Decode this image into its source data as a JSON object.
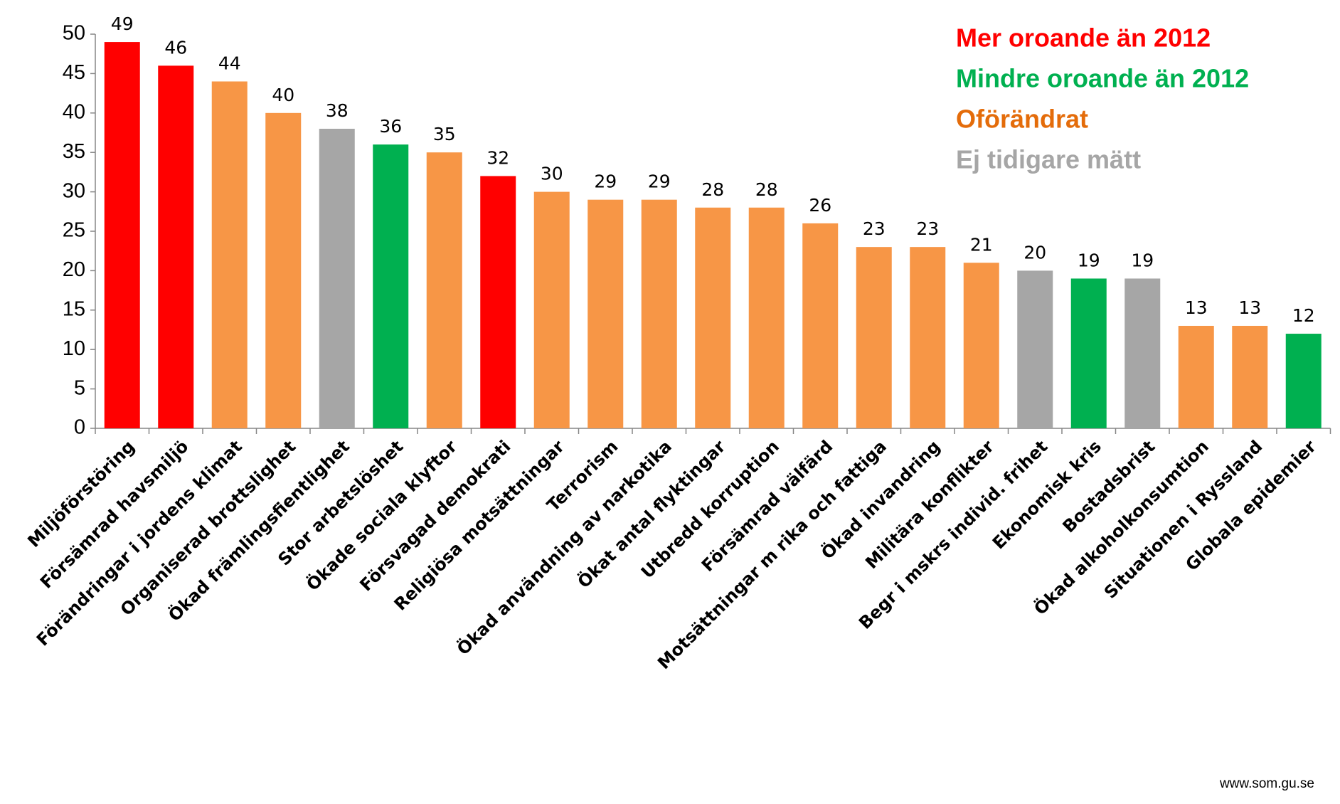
{
  "chart_data": {
    "type": "bar",
    "categories": [
      "Miljöförstöring",
      "Försämrad havsmiljö",
      "Förändringar i jordens klimat",
      "Organiserad brottslighet",
      "Ökad främlingsfientlighet",
      "Stor arbetslöshet",
      "Ökade sociala klyftor",
      "Försvagad demokrati",
      "Religiösa motsättningar",
      "Terrorism",
      "Ökad användning av narkotika",
      "Ökat antal flyktingar",
      "Utbredd korruption",
      "Försämrad välfärd",
      "Motsättningar m rika och fattiga",
      "Ökad invandring",
      "Militära konflikter",
      "Begr i mskrs individ. frihet",
      "Ekonomisk kris",
      "Bostadsbrist",
      "Ökad alkoholkonsumtion",
      "Situationen i Ryssland",
      "Globala epidemier"
    ],
    "values": [
      49,
      46,
      44,
      40,
      38,
      36,
      35,
      32,
      30,
      29,
      29,
      28,
      28,
      26,
      23,
      23,
      21,
      20,
      19,
      19,
      13,
      13,
      12
    ],
    "colors": [
      "#ff0000",
      "#ff0000",
      "#f79646",
      "#f79646",
      "#a6a6a6",
      "#00b050",
      "#f79646",
      "#ff0000",
      "#f79646",
      "#f79646",
      "#f79646",
      "#f79646",
      "#f79646",
      "#f79646",
      "#f79646",
      "#f79646",
      "#f79646",
      "#a6a6a6",
      "#00b050",
      "#a6a6a6",
      "#f79646",
      "#f79646",
      "#00b050"
    ],
    "legend": [
      {
        "name": "Mer oroande än 2012",
        "color": "#ff0000"
      },
      {
        "name": "Mindre oroande än 2012",
        "color": "#00b050"
      },
      {
        "name": "Oförändrat",
        "color": "#e46c0a"
      },
      {
        "name": "Ej tidigare mätt",
        "color": "#a6a6a6"
      }
    ],
    "ylim": [
      0,
      50
    ],
    "yticks": [
      0,
      5,
      10,
      15,
      20,
      25,
      30,
      35,
      40,
      45,
      50
    ],
    "source": "www.som.gu.se"
  }
}
